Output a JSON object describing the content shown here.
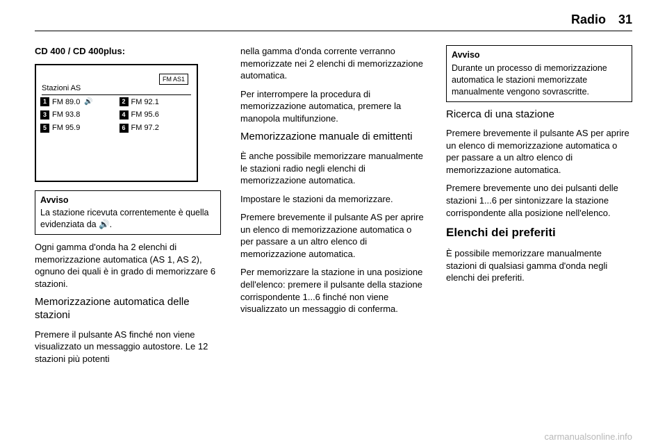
{
  "header": {
    "section": "Radio",
    "pagenum": "31"
  },
  "col1": {
    "title": "CD 400 / CD 400plus:",
    "screenshot": {
      "tab": "FM AS1",
      "title": "Stazioni AS",
      "rows": [
        {
          "num": "1",
          "text": "FM   89.0",
          "active": true
        },
        {
          "num": "2",
          "text": "FM   92.1",
          "active": false
        },
        {
          "num": "3",
          "text": "FM   93.8",
          "active": false
        },
        {
          "num": "4",
          "text": "FM   95.6",
          "active": false
        },
        {
          "num": "5",
          "text": "FM   95.9",
          "active": false
        },
        {
          "num": "6",
          "text": "FM   97.2",
          "active": false
        }
      ]
    },
    "notice": {
      "title": "Avviso",
      "body": "La stazione ricevuta correntemente è quella evidenziata da 🔊."
    },
    "p1": "Ogni gamma d'onda ha 2 elenchi di memorizzazione automatica (AS 1, AS 2), ognuno dei quali è in grado di memorizzare 6 stazioni.",
    "h1": "Memorizzazione automatica delle stazioni",
    "p2": "Premere il pulsante AS finché non viene visualizzato un messaggio autostore. Le 12 stazioni più potenti"
  },
  "col2": {
    "p1": "nella gamma d'onda corrente verranno memorizzate nei 2 elenchi di memorizzazione automatica.",
    "p2": "Per interrompere la procedura di memorizzazione automatica, premere la manopola multifunzione.",
    "h1": "Memorizzazione manuale di emittenti",
    "p3": "È anche possibile memorizzare manualmente le stazioni radio negli elenchi di memorizzazione automatica.",
    "p4": "Impostare le stazioni da memorizzare.",
    "p5": "Premere brevemente il pulsante AS per aprire un elenco di memorizzazione automatica o per passare a un altro elenco di memorizzazione automatica.",
    "p6": "Per memorizzare la stazione in una posizione dell'elenco: premere il pulsante della stazione corrispondente 1...6 finché non viene visualizzato un messaggio di conferma."
  },
  "col3": {
    "notice": {
      "title": "Avviso",
      "body": "Durante un processo di memorizzazione automatica le stazioni memorizzate manualmente vengono sovrascritte."
    },
    "h1": "Ricerca di una stazione",
    "p1": "Premere brevemente il pulsante AS per aprire un elenco di memorizzazione automatica o per passare a un altro elenco di memorizzazione automatica.",
    "p2": "Premere brevemente uno dei pulsanti delle stazioni 1...6 per sintonizzare la stazione corrispondente alla posizione nell'elenco.",
    "h2": "Elenchi dei preferiti",
    "p3": "È possibile memorizzare manualmente stazioni di qualsiasi gamma d'onda negli elenchi dei preferiti."
  },
  "watermark": "carmanualsonline.info"
}
